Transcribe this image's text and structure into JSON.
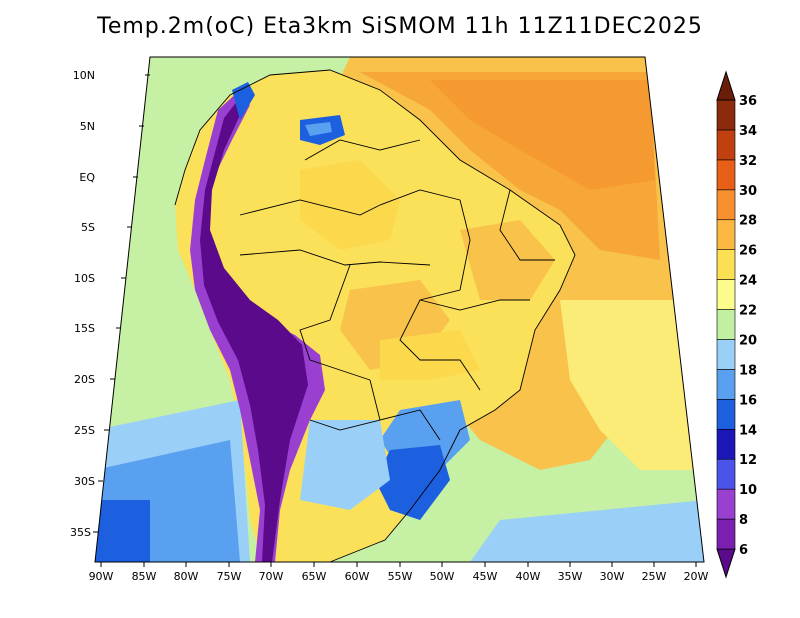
{
  "title": "Temp.2m(oC) Eta3km SiSMOM 11h 11Z11DEC2025",
  "lat_labels": [
    "10N",
    "5N",
    "EQ",
    "5S",
    "10S",
    "15S",
    "20S",
    "25S",
    "30S",
    "35S"
  ],
  "lon_labels": [
    "90W",
    "85W",
    "80W",
    "75W",
    "70W",
    "65W",
    "60W",
    "55W",
    "50W",
    "45W",
    "40W",
    "35W",
    "30W",
    "25W",
    "20W"
  ],
  "colorbar": {
    "labels": [
      "6",
      "8",
      "10",
      "12",
      "14",
      "16",
      "18",
      "20",
      "22",
      "24",
      "26",
      "28",
      "30",
      "32",
      "34",
      "36"
    ],
    "colors": [
      "#5a0a8a",
      "#7a1fb0",
      "#9a40d0",
      "#4a54e8",
      "#1c18b8",
      "#1c60e0",
      "#5aa0f0",
      "#9ad0f8",
      "#c0f0a0",
      "#fcfc8c",
      "#fce054",
      "#fcb840",
      "#f89030",
      "#e86018",
      "#c04010",
      "#8c2a0c",
      "#6a1e0a"
    ]
  },
  "colors": {
    "ocean_atlantic": "#f7a638",
    "land_base": "#fbde54"
  }
}
